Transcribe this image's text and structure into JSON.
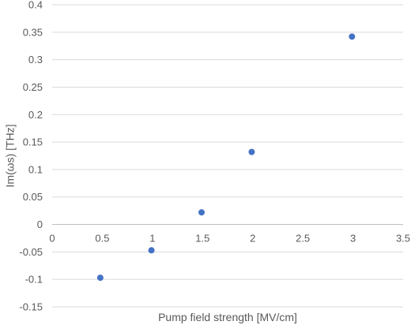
{
  "chart_data": {
    "type": "scatter",
    "title": "",
    "xlabel": "Pump field strength  [MV/cm]",
    "ylabel": "Im(ωs) [THz]",
    "xlim": [
      0,
      3.5
    ],
    "ylim": [
      -0.15,
      0.4
    ],
    "x_ticks": [
      "0",
      "0.5",
      "1",
      "1.5",
      "2",
      "2.5",
      "3",
      "3.5"
    ],
    "y_ticks": [
      "-0.15",
      "-0.1",
      "-0.05",
      "0",
      "0.05",
      "0.1",
      "0.15",
      "0.2",
      "0.25",
      "0.3",
      "0.35",
      "0.4"
    ],
    "grid": "horizontal",
    "legend": "none",
    "marker_color": "#4472C4",
    "series": [
      {
        "points": [
          {
            "x": 0.48,
            "y": -0.097
          },
          {
            "x": 0.99,
            "y": -0.047
          },
          {
            "x": 1.49,
            "y": 0.022
          },
          {
            "x": 1.99,
            "y": 0.132
          },
          {
            "x": 2.99,
            "y": 0.342
          }
        ]
      }
    ]
  }
}
